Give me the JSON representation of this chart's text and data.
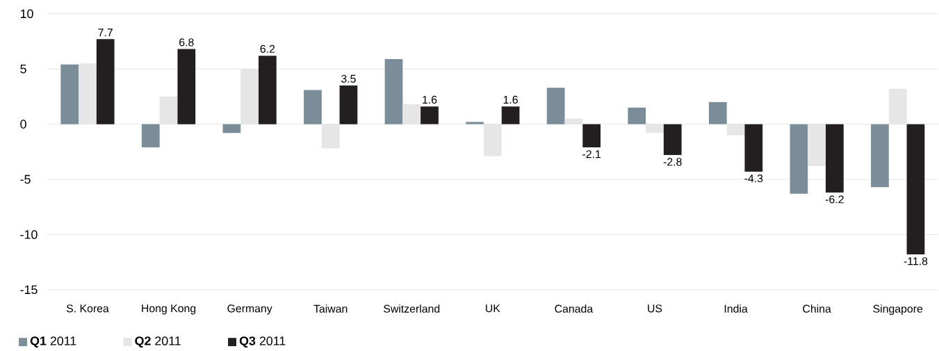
{
  "chart_data": {
    "type": "bar",
    "categories": [
      "S. Korea",
      "Hong Kong",
      "Germany",
      "Taiwan",
      "Switzerland",
      "UK",
      "Canada",
      "US",
      "India",
      "China",
      "Singapore"
    ],
    "series": [
      {
        "name": "**Q1** 2011",
        "color": "#7b8d99",
        "values": [
          5.4,
          -2.1,
          -0.8,
          3.1,
          5.9,
          0.2,
          3.3,
          1.5,
          2.0,
          -6.3,
          -5.7
        ]
      },
      {
        "name": "**Q2** 2011",
        "color": "#e6e6e6",
        "values": [
          5.5,
          2.5,
          5.0,
          -2.2,
          1.8,
          -2.9,
          0.5,
          -0.8,
          -1.0,
          -3.8,
          3.2
        ]
      },
      {
        "name": "**Q3** 2011",
        "color": "#231f20",
        "values": [
          7.7,
          6.8,
          6.2,
          3.5,
          1.6,
          1.6,
          -2.1,
          -2.8,
          -4.3,
          -6.2,
          -11.8
        ],
        "value_labels": [
          "7.7",
          "6.8",
          "6.2",
          "3.5",
          "1.6",
          "1.6",
          "-2.1",
          "-2.8",
          "-4.3",
          "-6.2",
          "-11.8"
        ]
      }
    ],
    "ylim": [
      -15,
      10
    ],
    "yticks": [
      -15,
      -10,
      -5,
      0,
      5,
      10
    ],
    "grid": "y",
    "legend": "bottom left"
  }
}
